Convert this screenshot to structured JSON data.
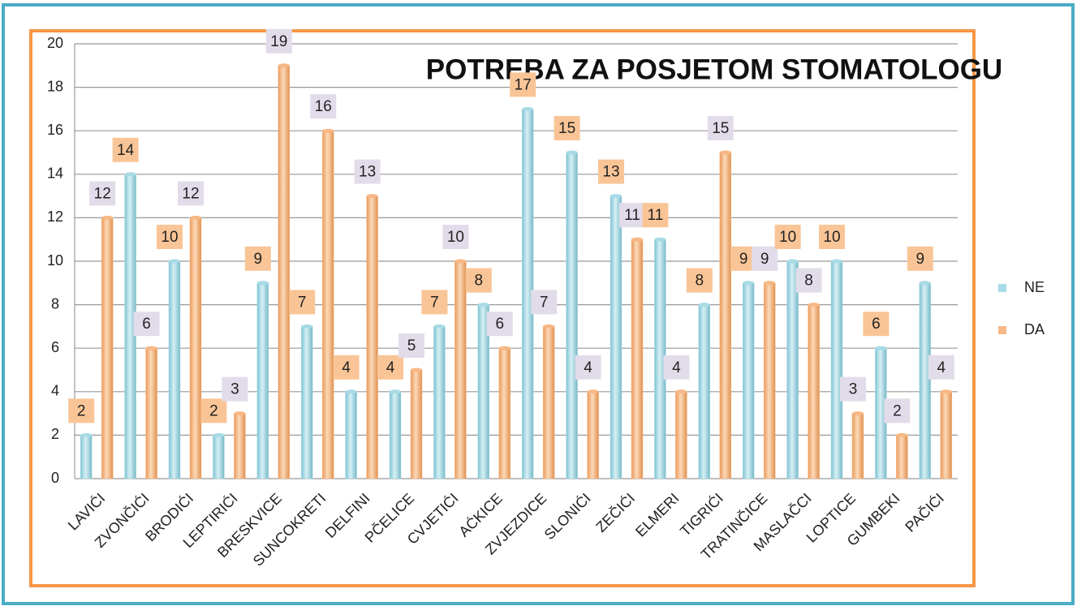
{
  "chart_data": {
    "type": "bar",
    "title": "POTREBA ZA POSJETOM STOMATOLOGU",
    "categories": [
      "LAVIĆI",
      "ZVONČIĆI",
      "BRODIĆI",
      "LEPTIRIĆI",
      "BRESKVICE",
      "SUNCOKRETI",
      "DELFINI",
      "PČELICE",
      "CVJETIĆI",
      "AĆKICE",
      "ZVJEZDICE",
      "SLONIĆI",
      "ZEČIĆI",
      "ELMERI",
      "TIGRIĆI",
      "TRATINČICE",
      "MASLAČCI",
      "LOPTICE",
      "GUMBEKI",
      "PAČIĆI"
    ],
    "series": [
      {
        "name": "NE",
        "color": "#a9dbe6",
        "label_color": "#f9c597",
        "values": [
          2,
          14,
          10,
          2,
          9,
          7,
          4,
          4,
          7,
          8,
          17,
          15,
          13,
          11,
          8,
          9,
          10,
          10,
          6,
          9
        ]
      },
      {
        "name": "DA",
        "color": "#f8b886",
        "label_color": "#e2dcea",
        "values": [
          12,
          6,
          12,
          3,
          19,
          16,
          13,
          5,
          10,
          6,
          7,
          4,
          11,
          4,
          15,
          9,
          8,
          3,
          2,
          4
        ]
      }
    ],
    "ylim": [
      0,
      20
    ],
    "yticks": [
      0,
      2,
      4,
      6,
      8,
      10,
      12,
      14,
      16,
      18,
      20
    ],
    "grid": true,
    "legend": "right"
  }
}
